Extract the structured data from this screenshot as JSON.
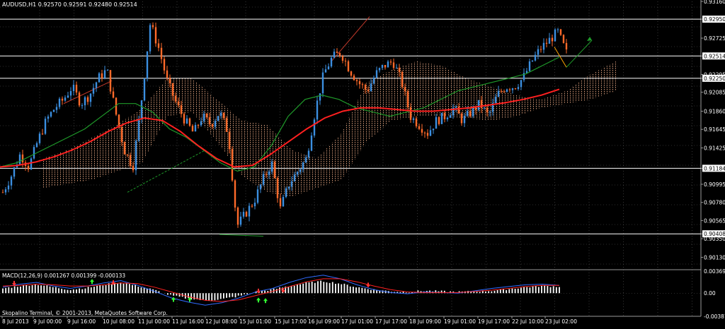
{
  "title": "AUDUSD,H1  0.92570 0.92591 0.92480 0.92514",
  "copyright": "Skopalino Terminal, © 2001-2013, MetaQuotes Software Corp.",
  "macd_label": "MACD(12,26,9) 0.001267 0.001399 -0.000133",
  "colors": {
    "background": "#000000",
    "grid": "#5a5a5a",
    "bull": "#3b8fe0",
    "bear": "#ff6a2a",
    "ma_fast": "#1f9a2a",
    "ma_slow": "#ff2020",
    "cloud": "#d59a78",
    "macd_hist": "#ffffff",
    "macd_main": "#2f6bff",
    "macd_signal": "#ff2020",
    "level_line": "#ffffff",
    "arrow": "#1f9a2a",
    "tentative": "#ffa500"
  },
  "chart_data": [
    {
      "type": "candlestick",
      "symbol": "AUDUSD",
      "timeframe": "H1",
      "ohlc_current": {
        "open": 0.9257,
        "high": 0.92591,
        "low": 0.9248,
        "close": 0.92514
      },
      "ylim": [
        0.9,
        0.9316
      ],
      "price_ticks": [
        "0.93160",
        "0.92950",
        "0.92725",
        "0.92514",
        "0.92295",
        "0.92250",
        "0.92085",
        "0.91860",
        "0.91645",
        "0.91425",
        "0.91184",
        "0.90995",
        "0.90780",
        "0.90565",
        "0.90408",
        "0.90350",
        "0.90130"
      ],
      "price_tick_values": [
        0.9316,
        0.9295,
        0.92725,
        0.92514,
        0.92295,
        0.9225,
        0.92085,
        0.9186,
        0.91645,
        0.91425,
        0.91184,
        0.90995,
        0.9078,
        0.90565,
        0.90408,
        0.9035,
        0.9013
      ],
      "horizontal_levels": [
        0.9295,
        0.92514,
        0.9225,
        0.91184,
        0.90408
      ],
      "x_ticks": [
        "8 Jul 2013",
        "9 Jul 00:00",
        "9 Jul 16:00",
        "10 Jul 08:00",
        "11 Jul 00:00",
        "11 Jul 16:00",
        "12 Jul 08:00",
        "15 Jul 01:00",
        "15 Jul 17:00",
        "16 Jul 09:00",
        "17 Jul 01:00",
        "17 Jul 17:00",
        "18 Jul 09:00",
        "19 Jul 01:00",
        "19 Jul 17:00",
        "22 Jul 10:00",
        "23 Jul 02:00"
      ],
      "close_path": [
        0.909,
        0.911,
        0.9135,
        0.912,
        0.915,
        0.9175,
        0.919,
        0.92,
        0.9215,
        0.9195,
        0.9205,
        0.9225,
        0.9235,
        0.9185,
        0.914,
        0.912,
        0.92,
        0.929,
        0.926,
        0.922,
        0.9195,
        0.9175,
        0.916,
        0.918,
        0.917,
        0.9185,
        0.916,
        0.905,
        0.9065,
        0.908,
        0.9105,
        0.9125,
        0.907,
        0.91,
        0.9115,
        0.913,
        0.9185,
        0.923,
        0.925,
        0.9255,
        0.9235,
        0.922,
        0.921,
        0.923,
        0.924,
        0.9245,
        0.922,
        0.918,
        0.917,
        0.916,
        0.9175,
        0.918,
        0.919,
        0.9175,
        0.9185,
        0.9195,
        0.918,
        0.9205,
        0.9215,
        0.9215,
        0.9225,
        0.9245,
        0.926,
        0.927,
        0.928,
        0.9255
      ],
      "ma_fast": [
        0.912,
        0.9125,
        0.9135,
        0.9145,
        0.9155,
        0.9165,
        0.918,
        0.9195,
        0.9195,
        0.9185,
        0.9165,
        0.9155,
        0.914,
        0.9125,
        0.9115,
        0.912,
        0.9145,
        0.918,
        0.92,
        0.9205,
        0.92,
        0.919,
        0.9185,
        0.918,
        0.9185,
        0.919,
        0.92,
        0.921,
        0.9215,
        0.922,
        0.9225,
        0.923,
        0.924,
        0.925
      ],
      "ma_slow": [
        0.912,
        0.9122,
        0.9126,
        0.9132,
        0.914,
        0.915,
        0.9162,
        0.9172,
        0.9178,
        0.9175,
        0.9162,
        0.9145,
        0.913,
        0.912,
        0.9122,
        0.9135,
        0.915,
        0.9165,
        0.9178,
        0.9186,
        0.919,
        0.919,
        0.9188,
        0.9186,
        0.9186,
        0.9188,
        0.919,
        0.9193,
        0.9196,
        0.92,
        0.9205,
        0.9212
      ],
      "cloud_upper": [
        0.913,
        0.914,
        0.9155,
        0.917,
        0.919,
        0.9225,
        0.9225,
        0.92,
        0.9175,
        0.917,
        0.914,
        0.913,
        0.916,
        0.922,
        0.9235,
        0.9245,
        0.924,
        0.9225,
        0.9215,
        0.9205,
        0.92,
        0.921,
        0.923,
        0.9245
      ],
      "cloud_lower": [
        0.9095,
        0.91,
        0.9105,
        0.9115,
        0.9125,
        0.918,
        0.9185,
        0.915,
        0.911,
        0.909,
        0.9085,
        0.9095,
        0.9105,
        0.915,
        0.9175,
        0.918,
        0.918,
        0.9178,
        0.9175,
        0.918,
        0.919,
        0.9195,
        0.92,
        0.921
      ]
    },
    {
      "type": "macd",
      "ylim": [
        -0.00387,
        0.00369
      ],
      "ticks": [
        "0.003694",
        "0.00",
        "-0.003875"
      ],
      "tick_values": [
        0.003694,
        0.0,
        -0.003875
      ],
      "histogram": [
        0.0008,
        0.0012,
        0.0015,
        0.001,
        0.0006,
        0.0009,
        0.0014,
        0.0018,
        0.0012,
        0.0005,
        -0.0004,
        -0.0009,
        -0.0012,
        -0.001,
        -0.0005,
        0.0002,
        0.0006,
        0.0012,
        0.0017,
        0.002,
        0.0016,
        0.001,
        0.0006,
        0.0003,
        0.0002,
        0.0004,
        0.0003,
        0.0002,
        0.0003,
        0.0004,
        0.0007,
        0.001,
        0.0012,
        0.0011
      ],
      "main": [
        0.001,
        0.0015,
        0.0018,
        0.0012,
        0.0008,
        0.0012,
        0.0017,
        0.0021,
        0.0013,
        0.0003,
        -0.0008,
        -0.0015,
        -0.002,
        -0.0016,
        -0.0008,
        0.0002,
        0.0008,
        0.0018,
        0.0026,
        0.003,
        0.0024,
        0.0014,
        0.0006,
        0.0001,
        -0.0001,
        0.0002,
        0.0001,
        0.0,
        0.0004,
        0.0008,
        0.0011,
        0.0014,
        0.0015,
        0.0013
      ],
      "signal": [
        0.0012,
        0.0013,
        0.0015,
        0.0014,
        0.0012,
        0.0012,
        0.0014,
        0.0017,
        0.0016,
        0.001,
        0.0002,
        -0.0006,
        -0.0012,
        -0.0014,
        -0.0011,
        -0.0004,
        0.0003,
        0.0011,
        0.0019,
        0.0024,
        0.0024,
        0.0019,
        0.0012,
        0.0006,
        0.0002,
        0.0001,
        0.0001,
        0.0001,
        0.0003,
        0.0005,
        0.0008,
        0.0011,
        0.0013,
        0.0013
      ]
    }
  ]
}
